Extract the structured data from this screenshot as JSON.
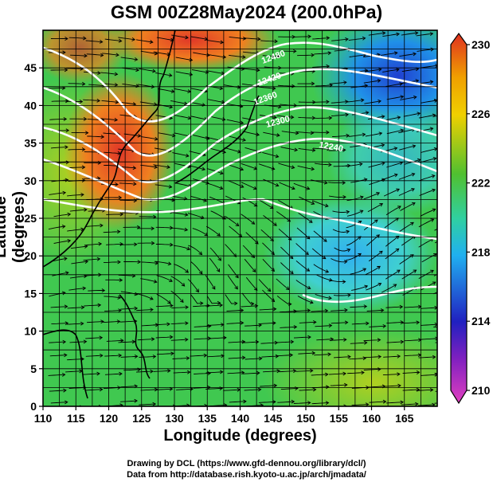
{
  "title": "GSM 00Z28May2024 (200.0hPa)",
  "axes": {
    "xlabel": "Longitude (degrees)",
    "ylabel": "Latitude  (degrees)",
    "xticks": [
      "110",
      "115",
      "120",
      "125",
      "130",
      "135",
      "140",
      "145",
      "150",
      "155",
      "160",
      "165"
    ],
    "yticks": [
      "0",
      "5",
      "10",
      "15",
      "20",
      "25",
      "30",
      "35",
      "40",
      "45"
    ],
    "xlim": [
      110,
      170
    ],
    "ylim": [
      0,
      50
    ]
  },
  "colorbar": {
    "labels": [
      "210",
      "214",
      "218",
      "222",
      "226",
      "230"
    ],
    "range": [
      210,
      230
    ],
    "colors": [
      "#e040c0",
      "#2020c0",
      "#20a0f0",
      "#30c060",
      "#f0a000",
      "#e03020"
    ]
  },
  "contour_labels": [
    "12480",
    "12420",
    "12360",
    "12300",
    "12240"
  ],
  "credits": {
    "line1": "Drawing by DCL (https://www.gfd-dennou.org/library/dcl/)",
    "line2": "Data from http://database.rish.kyoto-u.ac.jp/arch/jmadata/"
  }
}
